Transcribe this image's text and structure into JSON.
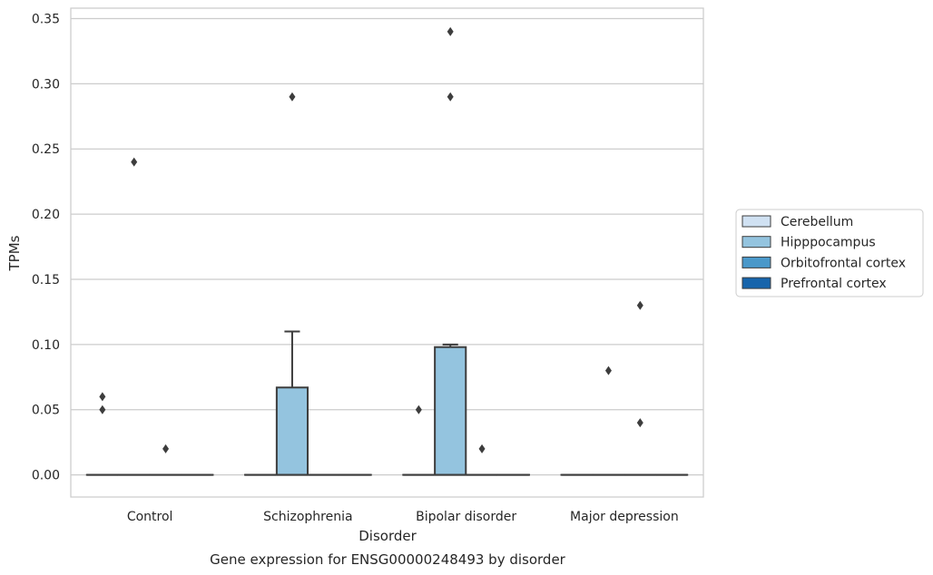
{
  "chart_data": {
    "type": "box",
    "title": "Gene expression for ENSG00000248493 by disorder",
    "xlabel": "Disorder",
    "ylabel": "TPMs",
    "ylim": [
      -0.017,
      0.358
    ],
    "yticks": [
      0.0,
      0.05,
      0.1,
      0.15,
      0.2,
      0.25,
      0.3,
      0.35
    ],
    "ytick_labels": [
      "0.00",
      "0.05",
      "0.10",
      "0.15",
      "0.20",
      "0.25",
      "0.30",
      "0.35"
    ],
    "categories": [
      "Control",
      "Schizophrenia",
      "Bipolar disorder",
      "Major depression"
    ],
    "grid": "horizontal",
    "legend_position": "right",
    "series": [
      {
        "name": "Cerebellum",
        "color": "#d0e1f2",
        "boxes": [
          {
            "q1": 0,
            "median": 0,
            "q3": 0,
            "whisker_low": 0,
            "whisker_high": 0,
            "outliers": [
              0.06,
              0.05
            ]
          },
          {
            "q1": 0,
            "median": 0,
            "q3": 0,
            "whisker_low": 0,
            "whisker_high": 0,
            "outliers": []
          },
          {
            "q1": 0,
            "median": 0,
            "q3": 0,
            "whisker_low": 0,
            "whisker_high": 0,
            "outliers": [
              0.05
            ]
          },
          {
            "q1": 0,
            "median": 0,
            "q3": 0,
            "whisker_low": 0,
            "whisker_high": 0,
            "outliers": []
          }
        ]
      },
      {
        "name": "Hipppocampus",
        "color": "#94c4df",
        "boxes": [
          {
            "q1": 0,
            "median": 0,
            "q3": 0,
            "whisker_low": 0,
            "whisker_high": 0,
            "outliers": [
              0.24
            ]
          },
          {
            "q1": 0,
            "median": 0,
            "q3": 0.067,
            "whisker_low": 0,
            "whisker_high": 0.11,
            "outliers": [
              0.29
            ]
          },
          {
            "q1": 0,
            "median": 0,
            "q3": 0.098,
            "whisker_low": 0,
            "whisker_high": 0.1,
            "outliers": [
              0.34,
              0.29
            ]
          },
          {
            "q1": 0,
            "median": 0,
            "q3": 0,
            "whisker_low": 0,
            "whisker_high": 0,
            "outliers": [
              0.08
            ]
          }
        ]
      },
      {
        "name": "Orbitofrontal cortex",
        "color": "#4a98c9",
        "boxes": [
          {
            "q1": 0,
            "median": 0,
            "q3": 0,
            "whisker_low": 0,
            "whisker_high": 0,
            "outliers": [
              0.02
            ]
          },
          {
            "q1": 0,
            "median": 0,
            "q3": 0,
            "whisker_low": 0,
            "whisker_high": 0,
            "outliers": []
          },
          {
            "q1": 0,
            "median": 0,
            "q3": 0,
            "whisker_low": 0,
            "whisker_high": 0,
            "outliers": [
              0.02
            ]
          },
          {
            "q1": 0,
            "median": 0,
            "q3": 0,
            "whisker_low": 0,
            "whisker_high": 0,
            "outliers": [
              0.13,
              0.04
            ]
          }
        ]
      },
      {
        "name": "Prefrontal cortex",
        "color": "#1764ab",
        "boxes": [
          {
            "q1": 0,
            "median": 0,
            "q3": 0,
            "whisker_low": 0,
            "whisker_high": 0,
            "outliers": []
          },
          {
            "q1": 0,
            "median": 0,
            "q3": 0,
            "whisker_low": 0,
            "whisker_high": 0,
            "outliers": []
          },
          {
            "q1": 0,
            "median": 0,
            "q3": 0,
            "whisker_low": 0,
            "whisker_high": 0,
            "outliers": []
          },
          {
            "q1": 0,
            "median": 0,
            "q3": 0,
            "whisker_low": 0,
            "whisker_high": 0,
            "outliers": []
          }
        ]
      }
    ],
    "colors": {
      "axes_edge": "#cccccc",
      "grid": "#cccccc",
      "box_edge": "#3d3d3d",
      "outlier": "#3d3d3d",
      "text": "#262626"
    }
  }
}
